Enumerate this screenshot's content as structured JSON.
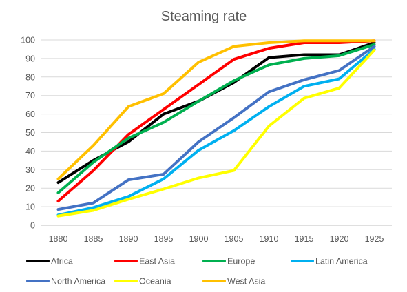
{
  "chart_data": {
    "type": "line",
    "title": "Steaming rate",
    "xlabel": "",
    "ylabel": "",
    "x": [
      "1880",
      "1885",
      "1890",
      "1895",
      "1900",
      "1905",
      "1910",
      "1915",
      "1920",
      "1925"
    ],
    "ylim": [
      0,
      100
    ],
    "yticks": [
      "0",
      "10",
      "20",
      "30",
      "40",
      "50",
      "60",
      "70",
      "80",
      "90",
      "100"
    ],
    "grid": true,
    "legend_position": "bottom",
    "series": [
      {
        "name": "Africa",
        "color": "#000000",
        "values": [
          23,
          35,
          45,
          60,
          67,
          77,
          90.5,
          92,
          92,
          98.5
        ]
      },
      {
        "name": "East Asia",
        "color": "#ff0000",
        "values": [
          13,
          29.5,
          49,
          62.5,
          76,
          89.5,
          95.5,
          98.5,
          98.5,
          99.5
        ]
      },
      {
        "name": "Europe",
        "color": "#00b050",
        "values": [
          17.5,
          34,
          47,
          55.5,
          67,
          78,
          86.5,
          90,
          91.5,
          97.5
        ]
      },
      {
        "name": "Latin America",
        "color": "#00b0f0",
        "values": [
          5.5,
          9.5,
          15.5,
          25,
          40.5,
          51,
          64,
          75,
          79,
          95
        ]
      },
      {
        "name": "North America",
        "color": "#4472c4",
        "values": [
          8.5,
          12,
          24.5,
          27.5,
          45,
          58,
          72,
          78.5,
          83.5,
          96.5
        ]
      },
      {
        "name": "Oceania",
        "color": "#ffff00",
        "values": [
          5,
          8,
          14,
          19.5,
          25.5,
          29.5,
          53.5,
          68.5,
          74,
          94.5
        ]
      },
      {
        "name": "West Asia",
        "color": "#ffc000",
        "values": [
          25,
          43,
          64,
          71,
          88,
          96.5,
          98.5,
          99.5,
          99.5,
          99.5
        ]
      }
    ]
  }
}
